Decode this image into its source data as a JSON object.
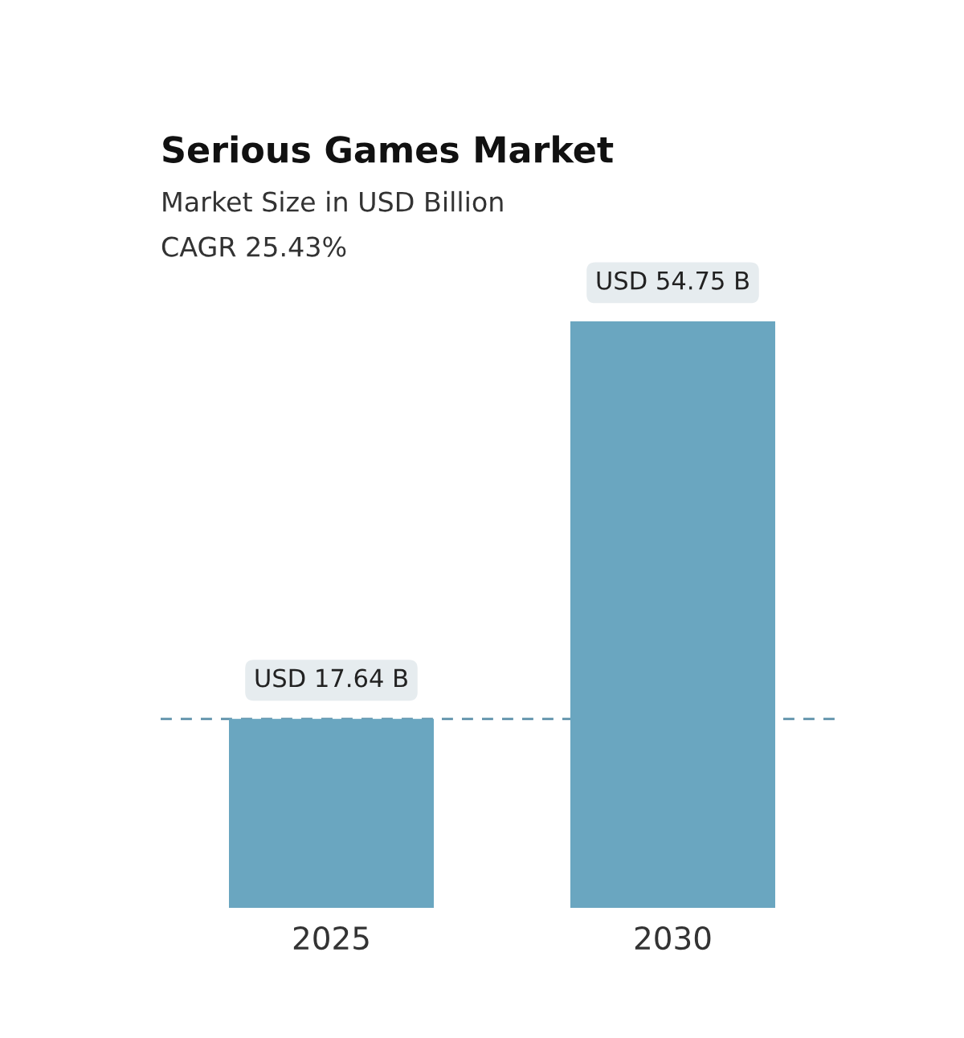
{
  "chart_data": {
    "type": "bar",
    "title": "Serious Games Market",
    "subtitle": "Market Size in USD Billion",
    "annotations": [
      "CAGR 25.43%"
    ],
    "categories": [
      "2025",
      "2030"
    ],
    "values": [
      17.64,
      54.75
    ],
    "color": "#6aa6c0",
    "value_labels": [
      "USD 17.64 B",
      "USD 54.75 B"
    ],
    "ylim": [
      0,
      60
    ],
    "tick_labels": "x",
    "grid": false,
    "legend": false,
    "ref_lines": [
      {
        "axis": "y",
        "value": 17.64,
        "label": null,
        "color": "#5b8fa8",
        "line_style": "dashed"
      }
    ]
  }
}
